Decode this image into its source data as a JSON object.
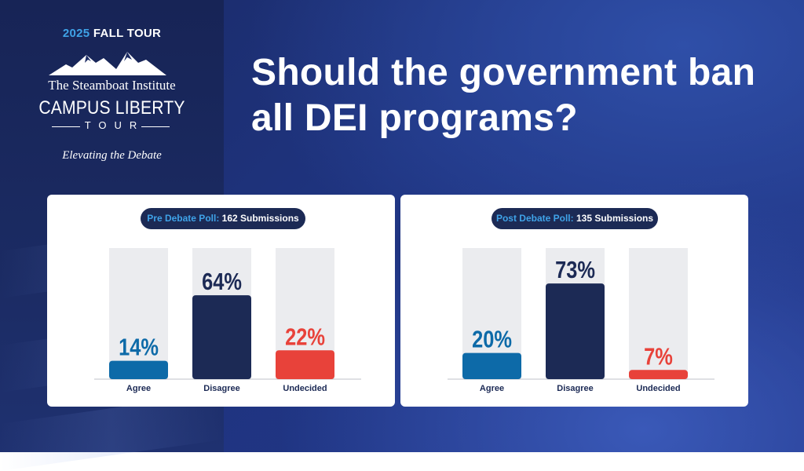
{
  "header": {
    "tour_year": "2025",
    "tour_season": "FALL TOUR",
    "institute": "The Steamboat Institute",
    "campus_title": "CAMPUS LIBERTY",
    "tour_word": "TOUR",
    "tagline": "Elevating the Debate"
  },
  "question": "Should the government ban all DEI programs?",
  "colors": {
    "agree": "#0d6aa8",
    "disagree": "#1c2a55",
    "undecided": "#e8423a",
    "track": "#ebecef"
  },
  "pre": {
    "label": "Pre Debate Poll:",
    "count": "162 Submissions"
  },
  "post": {
    "label": "Post Debate Poll:",
    "count": "135 Submissions"
  },
  "chart_data": [
    {
      "type": "bar",
      "title": "Pre Debate Poll: 162 Submissions",
      "categories": [
        "Agree",
        "Disagree",
        "Undecided"
      ],
      "values": [
        14,
        64,
        22
      ],
      "value_labels": [
        "14%",
        "64%",
        "22%"
      ],
      "ylim": [
        0,
        100
      ]
    },
    {
      "type": "bar",
      "title": "Post Debate Poll: 135 Submissions",
      "categories": [
        "Agree",
        "Disagree",
        "Undecided"
      ],
      "values": [
        20,
        73,
        7
      ],
      "value_labels": [
        "20%",
        "73%",
        "7%"
      ],
      "ylim": [
        0,
        100
      ]
    }
  ]
}
